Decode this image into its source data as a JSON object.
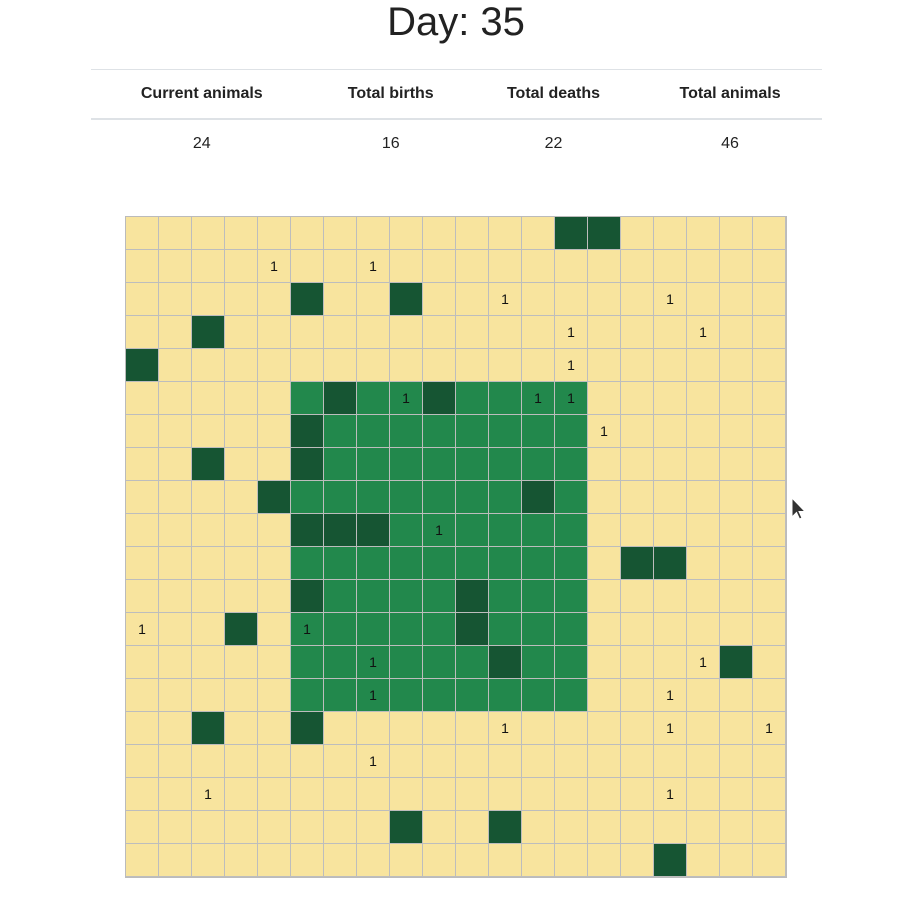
{
  "title": "Day: 35",
  "stats": {
    "headers": [
      "Current animals",
      "Total births",
      "Total deaths",
      "Total animals"
    ],
    "values": [
      "24",
      "16",
      "22",
      "46"
    ]
  },
  "colors": {
    "sand": "#f8e49e",
    "grass": "#22884c",
    "forest": "#165533"
  },
  "grid": {
    "rows": 20,
    "cols": 20,
    "legend": {
      ".": "sand",
      "G": "grass",
      "F": "forest",
      "1": "sand with 1 animal",
      "g": "grass with 1 animal"
    },
    "map": [
      "             FF     ",
      "    1  1            ",
      "     F  F  1    1   ",
      "  F          1   1  ",
      "F            1      ",
      "     GFGgFGGgg      ",
      "     FGGGGGGGG1     ",
      "  F  FGGGGGGGG      ",
      "    FGGGGGGGFG      ",
      "     FFFGgGGGG      ",
      "     GGGGGGGGG FF   ",
      "     FGGGGFGGG      ",
      "1  F gGGGGFGGG      ",
      "     GGgGGGFGG   1F ",
      "     GGgGGGGGG  1   ",
      "  F  F     1    1  1",
      "       1            ",
      "  1             1   ",
      "        F  F        ",
      "                F   "
    ]
  }
}
